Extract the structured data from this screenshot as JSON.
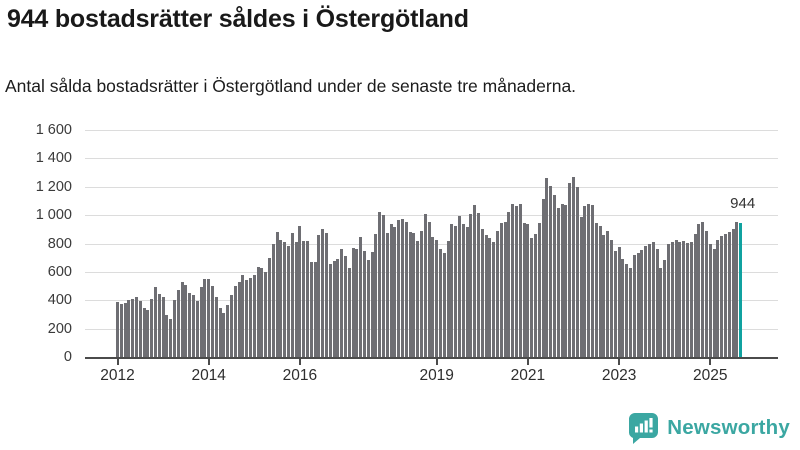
{
  "header": {
    "title": "944 bostadsrätter såldes i Östergötland",
    "subtitle": "Antal sålda bostadsrätter i Östergötland under de senaste tre månaderna."
  },
  "chart_data": {
    "type": "bar",
    "title": "944 bostadsrätter såldes i Östergötland",
    "xlabel": "",
    "ylabel": "",
    "grid": true,
    "bar_color": "#6e6e73",
    "gridline_color": "#dcdcdc",
    "axis_color": "#4b4b4b",
    "y_axis": {
      "ylim": [
        0,
        1600
      ],
      "tick_values": [
        0,
        200,
        400,
        600,
        800,
        1000,
        1200,
        1400,
        1600
      ],
      "tick_labels": [
        "0",
        "200",
        "400",
        "600",
        "800",
        "1 000",
        "1 200",
        "1 400",
        "1 600"
      ]
    },
    "x_axis": {
      "tick_labels": [
        "2012",
        "2014",
        "2016",
        "2019",
        "2021",
        "2023",
        "2025"
      ],
      "tick_years": [
        2012,
        2014,
        2016,
        2019,
        2021,
        2023,
        2025
      ]
    },
    "series": [
      {
        "name": "Antal sålda bostadsrätter (rullande tre månader)",
        "frequency": "monthly",
        "start": "2012-01",
        "end": "2025-09",
        "values": [
          390,
          372,
          380,
          400,
          412,
          420,
          395,
          345,
          330,
          410,
          490,
          445,
          420,
          295,
          265,
          405,
          470,
          527,
          510,
          450,
          440,
          398,
          490,
          550,
          550,
          504,
          421,
          347,
          312,
          370,
          440,
          504,
          527,
          578,
          543,
          560,
          578,
          636,
          629,
          601,
          698,
          798,
          883,
          828,
          809,
          781,
          872,
          809,
          925,
          821,
          821,
          670,
          670,
          860,
          902,
          874,
          659,
          675,
          694,
          763,
          710,
          625,
          768,
          758,
          844,
          745,
          682,
          740,
          867,
          1022,
          999,
          874,
          936,
          913,
          966,
          976,
          953,
          879,
          872,
          821,
          890,
          1006,
          950,
          845,
          825,
          758,
          735,
          821,
          936,
          920,
          994,
          936,
          913,
          1006,
          1068,
          1017,
          902,
          860,
          837,
          809,
          890,
          948,
          953,
          1022,
          1082,
          1063,
          1075,
          948,
          936,
          837,
          867,
          948,
          1114,
          1260,
          1207,
          1145,
          1052,
          1075,
          1068,
          1225,
          1267,
          1198,
          989,
          1063,
          1082,
          1068,
          948,
          920,
          860,
          890,
          828,
          745,
          775,
          694,
          659,
          629,
          717,
          735,
          751,
          786,
          798,
          809,
          758,
          624,
          682,
          798,
          814,
          828,
          814,
          821,
          805,
          814,
          867,
          936,
          953,
          890,
          798,
          758,
          828,
          851,
          867,
          879,
          905,
          955,
          944
        ]
      }
    ],
    "highlight": {
      "position": "last",
      "value": 944,
      "label": "944",
      "color": "#10a2a0"
    }
  },
  "footer": {
    "brand": "Newsworthy",
    "brand_color": "#3ba7a2"
  }
}
